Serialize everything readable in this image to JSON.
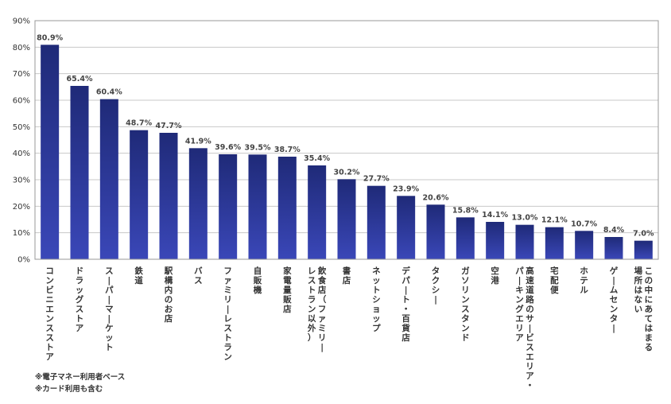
{
  "chart_data": {
    "type": "bar",
    "title": "",
    "xlabel": "",
    "ylabel": "",
    "ylim": [
      0,
      90
    ],
    "yticks": [
      "0%",
      "10%",
      "20%",
      "30%",
      "40%",
      "50%",
      "60%",
      "70%",
      "80%",
      "90%"
    ],
    "grid": true,
    "categories": [
      "コンビニエンスストア",
      "ドラッグストア",
      "スーパーマーケット",
      "鉄道",
      "駅構内のお店",
      "バス",
      "ファミリーレストラン",
      "自販機",
      "家電量販店",
      [
        "飲食店（ファミリー",
        "レストラン以外）"
      ],
      "書店",
      "ネットショップ",
      "デパート・百貨店",
      "タクシー",
      "ガソリンスタンド",
      "空港",
      [
        "高速道路のサービスエリア・",
        "パーキングエリア"
      ],
      "宅配便",
      "ホテル",
      "ゲームセンター",
      [
        "この中にあてはまる",
        "場所はない"
      ]
    ],
    "values": [
      80.9,
      65.4,
      60.4,
      48.7,
      47.7,
      41.9,
      39.6,
      39.5,
      38.7,
      35.4,
      30.2,
      27.7,
      23.9,
      20.6,
      15.8,
      14.1,
      13.0,
      12.1,
      10.7,
      8.4,
      7.0
    ],
    "data_labels": [
      "80.9%",
      "65.4%",
      "60.4%",
      "48.7%",
      "47.7%",
      "41.9%",
      "39.6%",
      "39.5%",
      "38.7%",
      "35.4%",
      "30.2%",
      "27.7%",
      "23.9%",
      "20.6%",
      "15.8%",
      "14.1%",
      "13.0%",
      "12.1%",
      "10.7%",
      "8.4%",
      "7.0%"
    ],
    "bar_color_top": "#1f2a78",
    "bar_color_bottom": "#3a47b8"
  },
  "notes": [
    "※電子マネー利用者ベース",
    "※カード利用も含む"
  ]
}
